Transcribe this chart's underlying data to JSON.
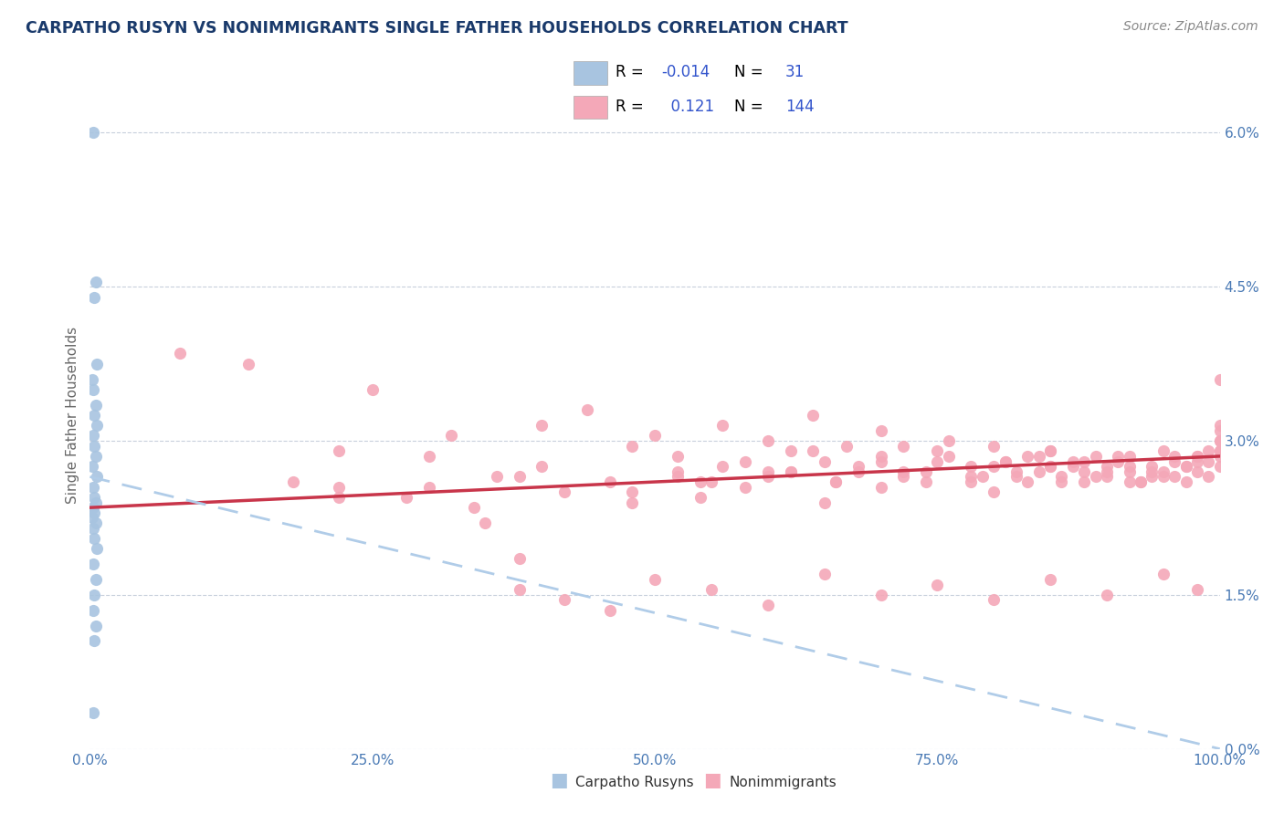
{
  "title": "CARPATHO RUSYN VS NONIMMIGRANTS SINGLE FATHER HOUSEHOLDS CORRELATION CHART",
  "source": "Source: ZipAtlas.com",
  "ylabel": "Single Father Households",
  "legend_label1": "Carpatho Rusyns",
  "legend_label2": "Nonimmigrants",
  "R1": -0.014,
  "N1": 31,
  "R2": 0.121,
  "N2": 144,
  "xlim": [
    0.0,
    100.0
  ],
  "ylim": [
    0.0,
    6.5
  ],
  "yticks": [
    0.0,
    1.5,
    3.0,
    4.5,
    6.0
  ],
  "ytick_labels": [
    "0.0%",
    "1.5%",
    "3.0%",
    "4.5%",
    "6.0%"
  ],
  "xticks": [
    0.0,
    25.0,
    50.0,
    75.0,
    100.0
  ],
  "xtick_labels": [
    "0.0%",
    "25.0%",
    "50.0%",
    "75.0%",
    "100.0%"
  ],
  "color_blue_dot": "#a8c4e0",
  "color_blue_line": "#b0cce8",
  "color_pink_dot": "#f4a8b8",
  "color_pink_line": "#c8354a",
  "color_title": "#1a3a6b",
  "color_axis_tick": "#4a7ab5",
  "color_grid": "#c8d0dc",
  "color_R_val": "#3355cc",
  "color_N_val": "#3355cc",
  "blue_x": [
    0.3,
    0.5,
    0.4,
    0.6,
    0.2,
    0.3,
    0.5,
    0.4,
    0.6,
    0.3,
    0.4,
    0.5,
    0.2,
    0.6,
    0.3,
    0.4,
    0.5,
    0.3,
    0.4,
    0.2,
    0.5,
    0.3,
    0.4,
    0.6,
    0.3,
    0.5,
    0.4,
    0.3,
    0.5,
    0.4,
    0.3
  ],
  "blue_y": [
    6.0,
    4.55,
    4.4,
    3.75,
    3.6,
    3.5,
    3.35,
    3.25,
    3.15,
    3.05,
    2.95,
    2.85,
    2.75,
    2.65,
    2.55,
    2.45,
    2.4,
    2.35,
    2.3,
    2.25,
    2.2,
    2.15,
    2.05,
    1.95,
    1.8,
    1.65,
    1.5,
    1.35,
    1.2,
    1.05,
    0.35
  ],
  "pink_x": [
    8,
    14,
    18,
    22,
    25,
    22,
    28,
    30,
    32,
    34,
    36,
    38,
    40,
    40,
    42,
    44,
    46,
    48,
    48,
    50,
    52,
    52,
    54,
    56,
    58,
    60,
    60,
    62,
    64,
    65,
    65,
    66,
    67,
    68,
    70,
    70,
    72,
    72,
    74,
    75,
    75,
    76,
    78,
    79,
    80,
    80,
    81,
    82,
    83,
    84,
    85,
    85,
    86,
    87,
    88,
    88,
    89,
    90,
    90,
    91,
    92,
    92,
    93,
    94,
    94,
    95,
    95,
    96,
    96,
    97,
    97,
    98,
    98,
    99,
    99,
    100,
    100,
    100,
    100,
    100,
    35,
    38,
    42,
    46,
    50,
    55,
    60,
    65,
    70,
    75,
    80,
    85,
    90,
    95,
    98,
    100,
    22,
    30,
    38,
    48,
    55,
    62,
    70,
    78,
    85,
    92,
    98,
    100,
    100,
    100,
    99,
    98,
    97,
    96,
    95,
    94,
    93,
    92,
    91,
    90,
    89,
    88,
    87,
    86,
    85,
    84,
    83,
    82,
    81,
    80,
    78,
    76,
    74,
    72,
    70,
    68,
    66,
    64,
    62,
    60,
    58,
    56,
    54,
    52
  ],
  "pink_y": [
    3.85,
    3.75,
    2.6,
    2.9,
    3.5,
    2.55,
    2.45,
    2.85,
    3.05,
    2.35,
    2.65,
    1.85,
    2.75,
    3.15,
    2.5,
    3.3,
    2.6,
    2.95,
    2.4,
    3.05,
    2.65,
    2.85,
    2.45,
    3.15,
    2.55,
    3.0,
    2.7,
    2.9,
    3.25,
    2.8,
    2.4,
    2.6,
    2.95,
    2.7,
    3.1,
    2.85,
    2.7,
    2.95,
    2.6,
    2.9,
    2.8,
    3.0,
    2.75,
    2.65,
    2.95,
    2.5,
    2.8,
    2.7,
    2.6,
    2.85,
    2.75,
    2.9,
    2.65,
    2.8,
    2.7,
    2.6,
    2.85,
    2.75,
    2.65,
    2.8,
    2.7,
    2.85,
    2.6,
    2.75,
    2.65,
    2.9,
    2.7,
    2.8,
    2.65,
    2.75,
    2.6,
    2.85,
    2.7,
    2.8,
    2.65,
    2.9,
    2.75,
    2.85,
    3.0,
    3.15,
    2.2,
    1.55,
    1.45,
    1.35,
    1.65,
    1.55,
    1.4,
    1.7,
    1.5,
    1.6,
    1.45,
    1.65,
    1.5,
    1.7,
    1.55,
    3.6,
    2.45,
    2.55,
    2.65,
    2.5,
    2.6,
    2.7,
    2.55,
    2.65,
    2.75,
    2.6,
    2.85,
    2.9,
    3.0,
    3.1,
    2.9,
    2.8,
    2.75,
    2.85,
    2.65,
    2.7,
    2.6,
    2.75,
    2.85,
    2.7,
    2.65,
    2.8,
    2.75,
    2.6,
    2.9,
    2.7,
    2.85,
    2.65,
    2.8,
    2.75,
    2.6,
    2.85,
    2.7,
    2.65,
    2.8,
    2.75,
    2.6,
    2.9,
    2.7,
    2.65,
    2.8,
    2.75,
    2.6,
    2.7
  ],
  "blue_line_x0": 0.0,
  "blue_line_y0": 2.65,
  "blue_line_x1": 100.0,
  "blue_line_y1": 0.0,
  "pink_line_x0": 0.0,
  "pink_line_y0": 2.35,
  "pink_line_x1": 100.0,
  "pink_line_y1": 2.85
}
